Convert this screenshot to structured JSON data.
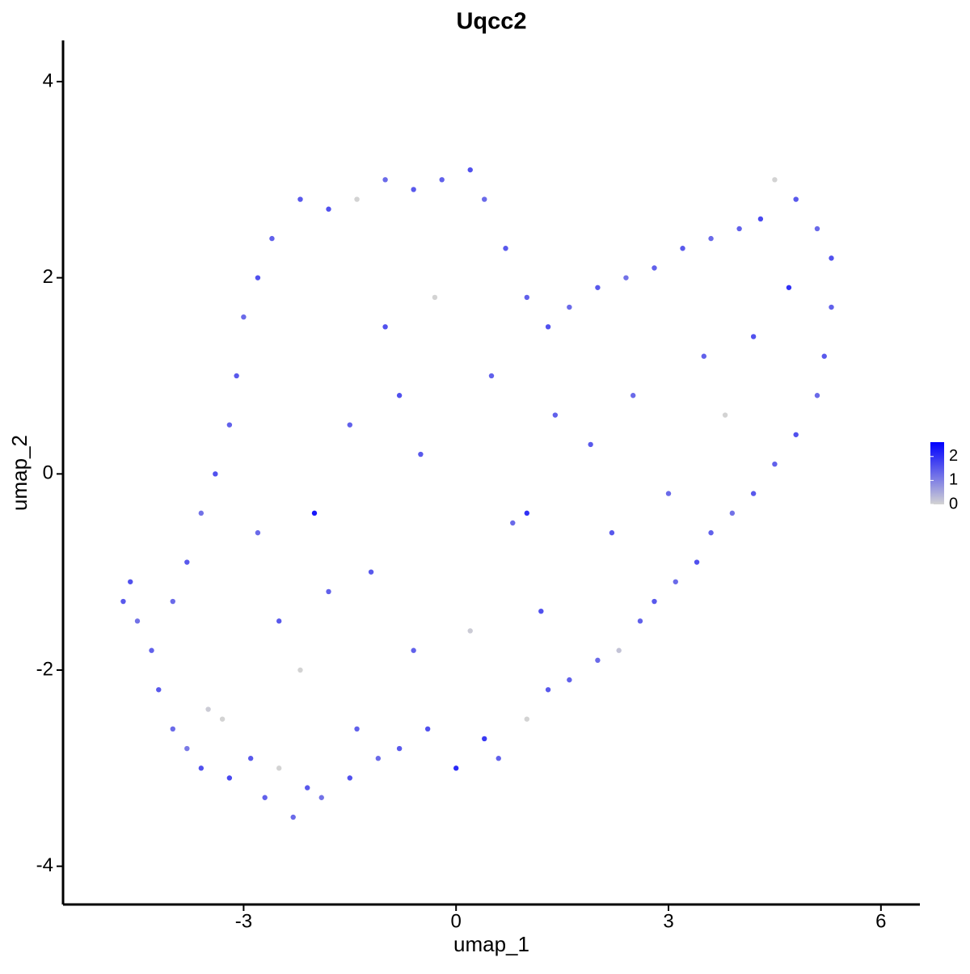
{
  "chart_data": {
    "type": "scatter",
    "title": "Uqcc2",
    "x_label": "umap_1",
    "y_label": "umap_2",
    "x": [
      -4.7,
      -4.6,
      -4.5,
      -4.3,
      -4.2,
      -4.0,
      -3.8,
      -3.6,
      -3.5,
      -3.3,
      -3.2,
      -2.9,
      -2.7,
      -2.5,
      -2.3,
      -2.1,
      -1.9,
      -1.5,
      -1.4,
      -1.1,
      -0.8,
      -0.4,
      0.0,
      0.4,
      0.6,
      1.0,
      1.3,
      1.6,
      2.0,
      2.3,
      2.6,
      2.8,
      3.1,
      3.4,
      3.6,
      3.9,
      4.2,
      4.5,
      4.8,
      5.1,
      5.2,
      5.3,
      5.3,
      5.1,
      4.8,
      4.5,
      4.3,
      4.0,
      3.6,
      3.2,
      2.8,
      2.4,
      2.0,
      1.6,
      1.3,
      1.0,
      0.7,
      0.4,
      0.2,
      -0.2,
      -0.6,
      -1.0,
      -1.4,
      -1.8,
      -2.2,
      -2.6,
      -2.8,
      -3.0,
      -3.1,
      -3.2,
      -3.4,
      -3.6,
      -3.8,
      -4.0,
      -2.0,
      -1.5,
      -1.0,
      -0.5,
      -0.3,
      0.5,
      0.8,
      1.0,
      -1.2,
      -0.6,
      0.2,
      1.2,
      1.9,
      2.5,
      3.5,
      3.8,
      4.2,
      4.7,
      -2.5,
      -2.2,
      -1.8,
      -2.8,
      -0.8,
      1.4,
      2.2,
      3.0
    ],
    "y": [
      -1.3,
      -1.1,
      -1.5,
      -1.8,
      -2.2,
      -2.6,
      -2.8,
      -3.0,
      -2.4,
      -2.5,
      -3.1,
      -2.9,
      -3.3,
      -3.0,
      -3.5,
      -3.2,
      -3.3,
      -3.1,
      -2.6,
      -2.9,
      -2.8,
      -2.6,
      -3.0,
      -2.7,
      -2.9,
      -2.5,
      -2.2,
      -2.1,
      -1.9,
      -1.8,
      -1.5,
      -1.3,
      -1.1,
      -0.9,
      -0.6,
      -0.4,
      -0.2,
      0.1,
      0.4,
      0.8,
      1.2,
      1.7,
      2.2,
      2.5,
      2.8,
      3.0,
      2.6,
      2.5,
      2.4,
      2.3,
      2.1,
      2.0,
      1.9,
      1.7,
      1.5,
      1.8,
      2.3,
      2.8,
      3.1,
      3.0,
      2.9,
      3.0,
      2.8,
      2.7,
      2.8,
      2.4,
      2.0,
      1.6,
      1.0,
      0.5,
      0.0,
      -0.4,
      -0.9,
      -1.3,
      -0.4,
      0.5,
      1.5,
      0.2,
      1.8,
      1.0,
      -0.5,
      -0.4,
      -1.0,
      -1.8,
      -1.6,
      -1.4,
      0.3,
      0.8,
      1.2,
      0.6,
      1.4,
      1.9,
      -1.5,
      -2.0,
      -1.2,
      -0.6,
      0.8,
      0.6,
      -0.6,
      -0.2
    ],
    "values": [
      1.5,
      1.6,
      1.2,
      1.4,
      1.5,
      1.3,
      1.1,
      1.6,
      0.1,
      0,
      1.7,
      1.5,
      1.4,
      0,
      1.3,
      1.5,
      1.2,
      1.6,
      1.4,
      1.3,
      1.5,
      1.6,
      2.1,
      1.9,
      1.4,
      0,
      1.5,
      1.4,
      1.3,
      0.2,
      1.4,
      1.5,
      1.3,
      1.6,
      1.4,
      1.2,
      1.5,
      1.4,
      1.6,
      1.3,
      1.5,
      1.4,
      1.6,
      1.3,
      1.5,
      0,
      1.7,
      1.4,
      1.3,
      1.5,
      1.4,
      1.2,
      1.5,
      1.3,
      1.6,
      1.4,
      1.5,
      1.3,
      1.6,
      1.4,
      1.5,
      1.3,
      0,
      1.6,
      1.5,
      1.4,
      1.6,
      1.3,
      1.5,
      1.4,
      1.6,
      1.2,
      1.5,
      1.3,
      2.3,
      1.4,
      1.6,
      1.5,
      0,
      1.4,
      1.3,
      2.0,
      1.5,
      1.4,
      0.1,
      1.6,
      1.5,
      1.3,
      1.4,
      0,
      1.6,
      2.0,
      1.5,
      0,
      1.4,
      1.3,
      1.6,
      1.4,
      1.5,
      1.3
    ],
    "xlim": [
      -5.55,
      6.55
    ],
    "ylim": [
      -4.39,
      4.42
    ],
    "xticks": [
      -3,
      0,
      3,
      6
    ],
    "yticks": [
      -4,
      -2,
      0,
      2,
      4
    ],
    "colorbar": {
      "lim": [
        0,
        2.6
      ],
      "ticks": [
        0,
        1,
        2
      ],
      "low_color": "#d3d3d3",
      "high_color": "#0000ff"
    }
  }
}
